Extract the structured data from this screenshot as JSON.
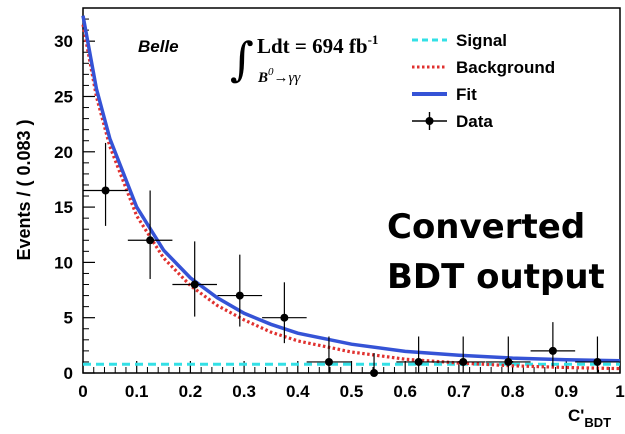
{
  "chart_data": {
    "type": "line",
    "experiment_label": "Belle",
    "luminosity_label": "Ldt = 694 fb",
    "luminosity_exponent": "-1",
    "decay_base": "B",
    "decay_superscript": "0",
    "decay_arrow_products": "→γγ",
    "annotation_line1": "Converted",
    "annotation_line2": "BDT output",
    "ylabel": "Events / ( 0.083 )",
    "xlabel_base": "C'",
    "xlabel_sub": "BDT",
    "xlim": [
      0,
      1
    ],
    "ylim": [
      0,
      33
    ],
    "xticks": [
      "0",
      "0.1",
      "0.2",
      "0.3",
      "0.4",
      "0.5",
      "0.6",
      "0.7",
      "0.8",
      "0.9",
      "1"
    ],
    "yticks": [
      "0",
      "5",
      "10",
      "15",
      "20",
      "25",
      "30"
    ],
    "legend_position": "top-right",
    "legend": [
      {
        "label": "Signal",
        "style": "dashed",
        "color": "#33e0e6"
      },
      {
        "label": "Background",
        "style": "dotted",
        "color": "#e0312f"
      },
      {
        "label": "Fit",
        "style": "solid",
        "color": "#3553d6"
      },
      {
        "label": "Data",
        "style": "marker",
        "color": "#000000"
      }
    ],
    "series": [
      {
        "name": "Signal",
        "x": [
          0,
          0.1,
          0.2,
          0.3,
          0.4,
          0.5,
          0.6,
          0.7,
          0.8,
          0.9,
          1.0
        ],
        "y": [
          0.8,
          0.8,
          0.8,
          0.8,
          0.8,
          0.8,
          0.8,
          0.8,
          0.8,
          0.8,
          0.8
        ]
      },
      {
        "name": "Background",
        "x": [
          0,
          0.025,
          0.05,
          0.1,
          0.15,
          0.2,
          0.25,
          0.3,
          0.35,
          0.4,
          0.5,
          0.6,
          0.7,
          0.8,
          0.9,
          1.0
        ],
        "y": [
          31.5,
          25.0,
          20.5,
          14.2,
          10.4,
          7.9,
          6.1,
          4.8,
          3.7,
          2.9,
          1.9,
          1.25,
          0.9,
          0.65,
          0.5,
          0.4
        ]
      },
      {
        "name": "Fit",
        "x": [
          0,
          0.025,
          0.05,
          0.1,
          0.15,
          0.2,
          0.25,
          0.3,
          0.35,
          0.4,
          0.5,
          0.6,
          0.7,
          0.8,
          0.9,
          1.0
        ],
        "y": [
          32.3,
          25.7,
          21.2,
          15.0,
          11.1,
          8.6,
          6.8,
          5.4,
          4.4,
          3.6,
          2.6,
          1.95,
          1.6,
          1.35,
          1.2,
          1.1
        ]
      },
      {
        "name": "Data",
        "x": [
          0.042,
          0.125,
          0.208,
          0.292,
          0.375,
          0.458,
          0.542,
          0.625,
          0.708,
          0.792,
          0.875,
          0.958
        ],
        "y": [
          16.5,
          12,
          8,
          7,
          5,
          1,
          0,
          1,
          1,
          1,
          2,
          1
        ],
        "yerr_low": [
          3.2,
          3.5,
          2.9,
          2.8,
          2.3,
          1.0,
          0,
          1.0,
          1.0,
          1.0,
          1.4,
          1.0
        ],
        "yerr_high": [
          4.3,
          4.5,
          3.9,
          3.7,
          3.2,
          2.3,
          1.8,
          2.3,
          2.3,
          2.3,
          2.6,
          2.3
        ],
        "xerr": 0.0415
      }
    ]
  }
}
